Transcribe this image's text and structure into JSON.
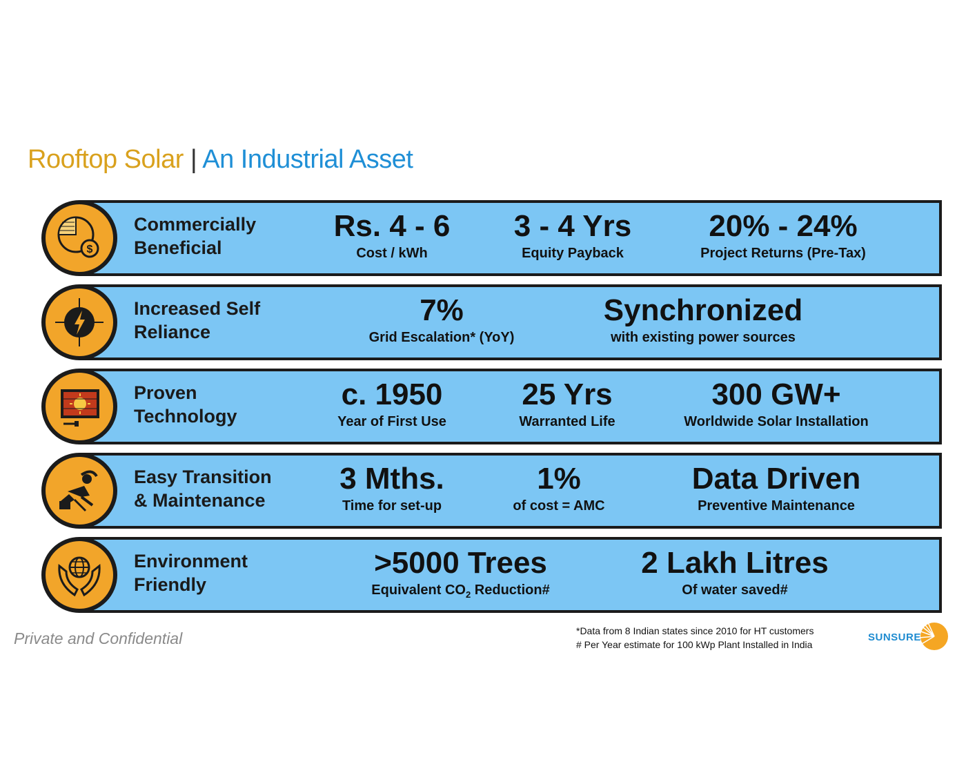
{
  "title": {
    "part1": "Rooftop Solar",
    "separator": " | ",
    "part2": "An Industrial Asset"
  },
  "rows": [
    {
      "icon": "pie-chart-dollar-icon",
      "label_line1": "Commercially",
      "label_line2": "Beneficial",
      "stats": [
        {
          "value": "Rs. 4 - 6",
          "caption": "Cost / kWh"
        },
        {
          "value": "3 - 4 Yrs",
          "caption": "Equity Payback"
        },
        {
          "value": "20% - 24%",
          "caption": "Project Returns (Pre-Tax)"
        }
      ]
    },
    {
      "icon": "lightning-compass-icon",
      "label_line1": "Increased Self",
      "label_line2": "Reliance",
      "stats": [
        {
          "value": "7%",
          "caption": "Grid Escalation* (YoY)"
        },
        {
          "value": "Synchronized",
          "caption": "with existing power sources"
        }
      ]
    },
    {
      "icon": "solar-panel-icon",
      "label_line1": "Proven",
      "label_line2": "Technology",
      "stats": [
        {
          "value": "c. 1950",
          "caption": "Year of First Use"
        },
        {
          "value": "25 Yrs",
          "caption": "Warranted Life"
        },
        {
          "value": "300 GW+",
          "caption": "Worldwide Solar Installation"
        }
      ]
    },
    {
      "icon": "relaxing-person-icon",
      "label_line1": "Easy Transition",
      "label_line2": "& Maintenance",
      "stats": [
        {
          "value": "3 Mths.",
          "caption": "Time for set-up"
        },
        {
          "value": "1%",
          "caption": "of cost = AMC"
        },
        {
          "value": "Data Driven",
          "caption": "Preventive Maintenance"
        }
      ]
    },
    {
      "icon": "hands-globe-icon",
      "label_line1": "Environment",
      "label_line2": "Friendly",
      "stats": [
        {
          "value": ">5000 Trees",
          "caption_pre": "Equivalent CO",
          "caption_sub": "2",
          "caption_post": " Reduction#"
        },
        {
          "value": "2 Lakh Litres",
          "caption": "Of water saved#"
        }
      ]
    }
  ],
  "footer": {
    "confidential": "Private and Confidential",
    "note1": "*Data from 8 Indian states since 2010 for HT customers",
    "note2": "# Per Year estimate for 100 kWp Plant Installed in India",
    "logo_text": "SUNSURE"
  },
  "colors": {
    "band": "#7cc6f4",
    "circle": "#f2a52a",
    "title_gold": "#d9a11d",
    "title_blue": "#1f8fd6",
    "outline": "#1b1b1b"
  }
}
